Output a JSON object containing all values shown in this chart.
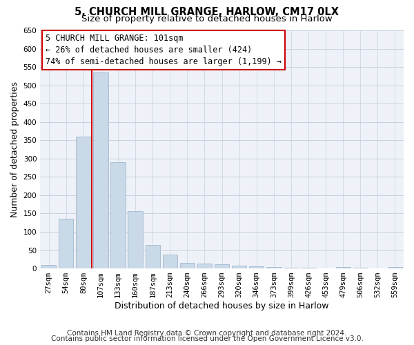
{
  "title": "5, CHURCH MILL GRANGE, HARLOW, CM17 0LX",
  "subtitle": "Size of property relative to detached houses in Harlow",
  "xlabel": "Distribution of detached houses by size in Harlow",
  "ylabel": "Number of detached properties",
  "categories": [
    "27sqm",
    "54sqm",
    "80sqm",
    "107sqm",
    "133sqm",
    "160sqm",
    "187sqm",
    "213sqm",
    "240sqm",
    "266sqm",
    "293sqm",
    "320sqm",
    "346sqm",
    "373sqm",
    "399sqm",
    "426sqm",
    "453sqm",
    "479sqm",
    "506sqm",
    "532sqm",
    "559sqm"
  ],
  "values": [
    10,
    135,
    360,
    535,
    290,
    157,
    65,
    38,
    15,
    13,
    12,
    8,
    5,
    3,
    2,
    2,
    0,
    4,
    2,
    0,
    4
  ],
  "bar_color": "#c9d9e8",
  "bar_edge_color": "#a8bdd0",
  "grid_color": "#c8d0e0",
  "bg_color": "#eef2f8",
  "vline_color": "#cc0000",
  "vline_x": 2.5,
  "annotation_box_edgecolor": "#cc0000",
  "annotation_text": "5 CHURCH MILL GRANGE: 101sqm\n← 26% of detached houses are smaller (424)\n74% of semi-detached houses are larger (1,199) →",
  "ylim": [
    0,
    650
  ],
  "yticks": [
    0,
    50,
    100,
    150,
    200,
    250,
    300,
    350,
    400,
    450,
    500,
    550,
    600,
    650
  ],
  "footer_line1": "Contains HM Land Registry data © Crown copyright and database right 2024.",
  "footer_line2": "Contains public sector information licensed under the Open Government Licence v3.0.",
  "title_fontsize": 10.5,
  "subtitle_fontsize": 9.5,
  "xlabel_fontsize": 9,
  "ylabel_fontsize": 9,
  "tick_fontsize": 7.5,
  "annotation_fontsize": 8.5,
  "footer_fontsize": 7.5
}
